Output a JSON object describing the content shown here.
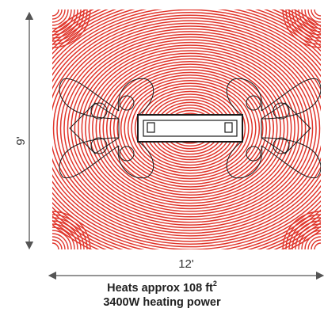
{
  "dimensions": {
    "height_label": "9'",
    "width_label": "12'"
  },
  "caption": {
    "area_text": "Heats approx 108 ft",
    "area_superscript": "2",
    "power_text": "3400W heating power"
  },
  "colors": {
    "heat_rings": "#e0352b",
    "heater_outline": "#1a1a1a",
    "arrows": "#555555",
    "text": "#222222"
  },
  "icons": {
    "heater": "heater-unit-icon"
  }
}
